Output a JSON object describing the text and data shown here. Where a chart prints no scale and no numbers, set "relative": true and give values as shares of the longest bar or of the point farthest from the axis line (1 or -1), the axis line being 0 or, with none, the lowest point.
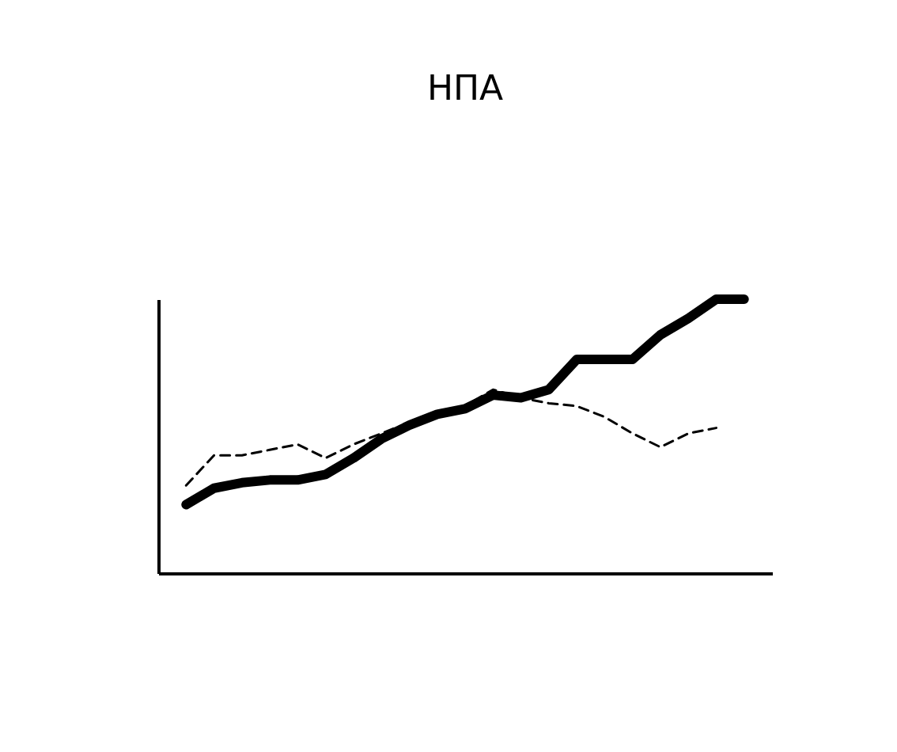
{
  "chart_data": {
    "type": "line",
    "title": "НПА",
    "relative": true,
    "categories": [
      null,
      null,
      null,
      null,
      null,
      null,
      null,
      null,
      null,
      null,
      null,
      null,
      null,
      null,
      null,
      null,
      null,
      null,
      null,
      null,
      null
    ],
    "series": [
      {
        "color": "#000000",
        "line_style": "solid",
        "values": [
          0.25,
          0.31,
          0.33,
          0.34,
          0.34,
          0.36,
          0.42,
          0.49,
          0.54,
          0.58,
          0.6,
          0.65,
          0.64,
          0.67,
          0.78,
          0.78,
          0.78,
          0.87,
          0.93,
          1.0,
          1.0
        ]
      },
      {
        "color": "#000000",
        "line_style": "dashed",
        "values": [
          0.32,
          0.43,
          0.43,
          0.45,
          0.47,
          0.42,
          0.47,
          0.51,
          0.55,
          0.57,
          0.61,
          0.67,
          0.64,
          0.62,
          0.61,
          0.57,
          0.51,
          0.46,
          0.51,
          0.53,
          null
        ]
      }
    ]
  }
}
